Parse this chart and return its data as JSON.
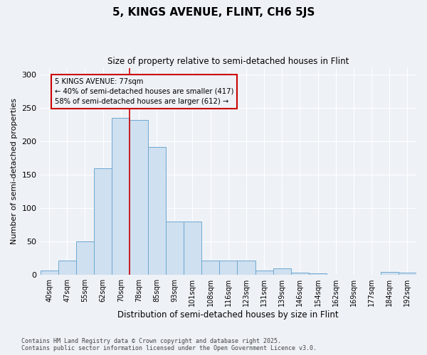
{
  "title": "5, KINGS AVENUE, FLINT, CH6 5JS",
  "subtitle": "Size of property relative to semi-detached houses in Flint",
  "xlabel": "Distribution of semi-detached houses by size in Flint",
  "ylabel": "Number of semi-detached properties",
  "categories": [
    "40sqm",
    "47sqm",
    "55sqm",
    "62sqm",
    "70sqm",
    "78sqm",
    "85sqm",
    "93sqm",
    "101sqm",
    "108sqm",
    "116sqm",
    "123sqm",
    "131sqm",
    "139sqm",
    "146sqm",
    "154sqm",
    "162sqm",
    "169sqm",
    "177sqm",
    "184sqm",
    "192sqm"
  ],
  "values": [
    7,
    22,
    50,
    160,
    235,
    232,
    192,
    80,
    80,
    22,
    22,
    22,
    7,
    10,
    3,
    2,
    0,
    0,
    0,
    5,
    3
  ],
  "bar_color": "#cfe0f0",
  "bar_edge_color": "#6fa8d0",
  "vline_x_idx": 5,
  "vline_color": "#cc0000",
  "annotation_text": "5 KINGS AVENUE: 77sqm\n← 40% of semi-detached houses are smaller (417)\n58% of semi-detached houses are larger (612) →",
  "annotation_box_color": "#cc0000",
  "ylim": [
    0,
    310
  ],
  "yticks": [
    0,
    50,
    100,
    150,
    200,
    250,
    300
  ],
  "background_color": "#eef2f7",
  "grid_color": "#ffffff",
  "footer": "Contains HM Land Registry data © Crown copyright and database right 2025.\nContains public sector information licensed under the Open Government Licence v3.0."
}
